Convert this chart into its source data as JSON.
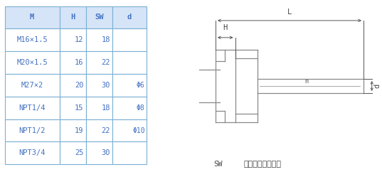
{
  "table_header": [
    "M",
    "H",
    "SW",
    "d"
  ],
  "table_rows": [
    [
      "M16×1.5",
      "12",
      "18",
      ""
    ],
    [
      "M20×1.5",
      "16",
      "22",
      ""
    ],
    [
      "M27×2",
      "20",
      "30",
      ""
    ],
    [
      "NPT1/4",
      "15",
      "18",
      ""
    ],
    [
      "NPT1/2",
      "19",
      "22",
      ""
    ],
    [
      "NPT3/4",
      "25",
      "30",
      ""
    ]
  ],
  "d_labels": [
    "Φ6",
    "Φ8",
    "Φ10"
  ],
  "d_label_rows": [
    2,
    3,
    4
  ],
  "header_bg": "#d6e4f7",
  "border_color": "#7ab0d4",
  "text_color": "#4472c4",
  "diagram_label": "可动内螺紹管接头",
  "sw_label": "SW",
  "fig_width": 5.37,
  "fig_height": 2.42
}
